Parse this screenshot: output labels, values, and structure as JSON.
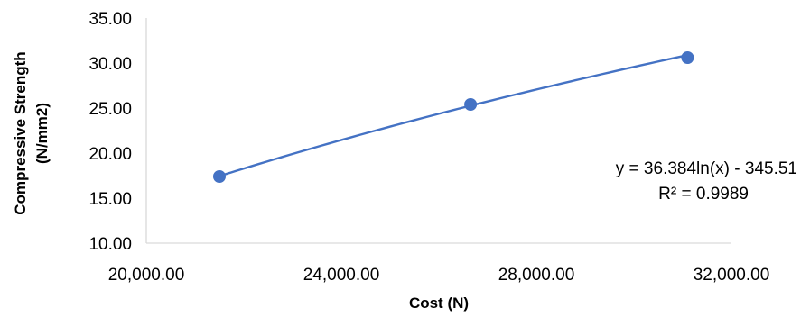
{
  "chart_data": {
    "type": "scatter",
    "title": "",
    "xlabel": "Cost (N)",
    "ylabel_line1": "Compressive Strength",
    "ylabel_line2": "(N/mm2)",
    "xlim": [
      20000,
      32000
    ],
    "ylim": [
      10,
      35
    ],
    "x_ticks": [
      20000,
      24000,
      28000,
      32000
    ],
    "x_tick_labels": [
      "20,000.00",
      "24,000.00",
      "28,000.00",
      "32,000.00"
    ],
    "y_ticks": [
      10,
      15,
      20,
      25,
      30,
      35
    ],
    "y_tick_labels": [
      "10.00",
      "15.00",
      "20.00",
      "25.00",
      "30.00",
      "35.00"
    ],
    "grid": false,
    "series": [
      {
        "x": [
          21500,
          26650,
          31100
        ],
        "y": [
          17.4,
          25.4,
          30.6
        ]
      }
    ],
    "trendline": {
      "type": "logarithmic",
      "a": 36.384,
      "b": -345.51
    },
    "annotations": {
      "equation": "y = 36.384ln(x) - 345.51",
      "r_squared": "R² = 0.9989"
    },
    "colors": {
      "series": "#4472C4",
      "axis": "#D9D9D9",
      "text": "#000000"
    }
  }
}
